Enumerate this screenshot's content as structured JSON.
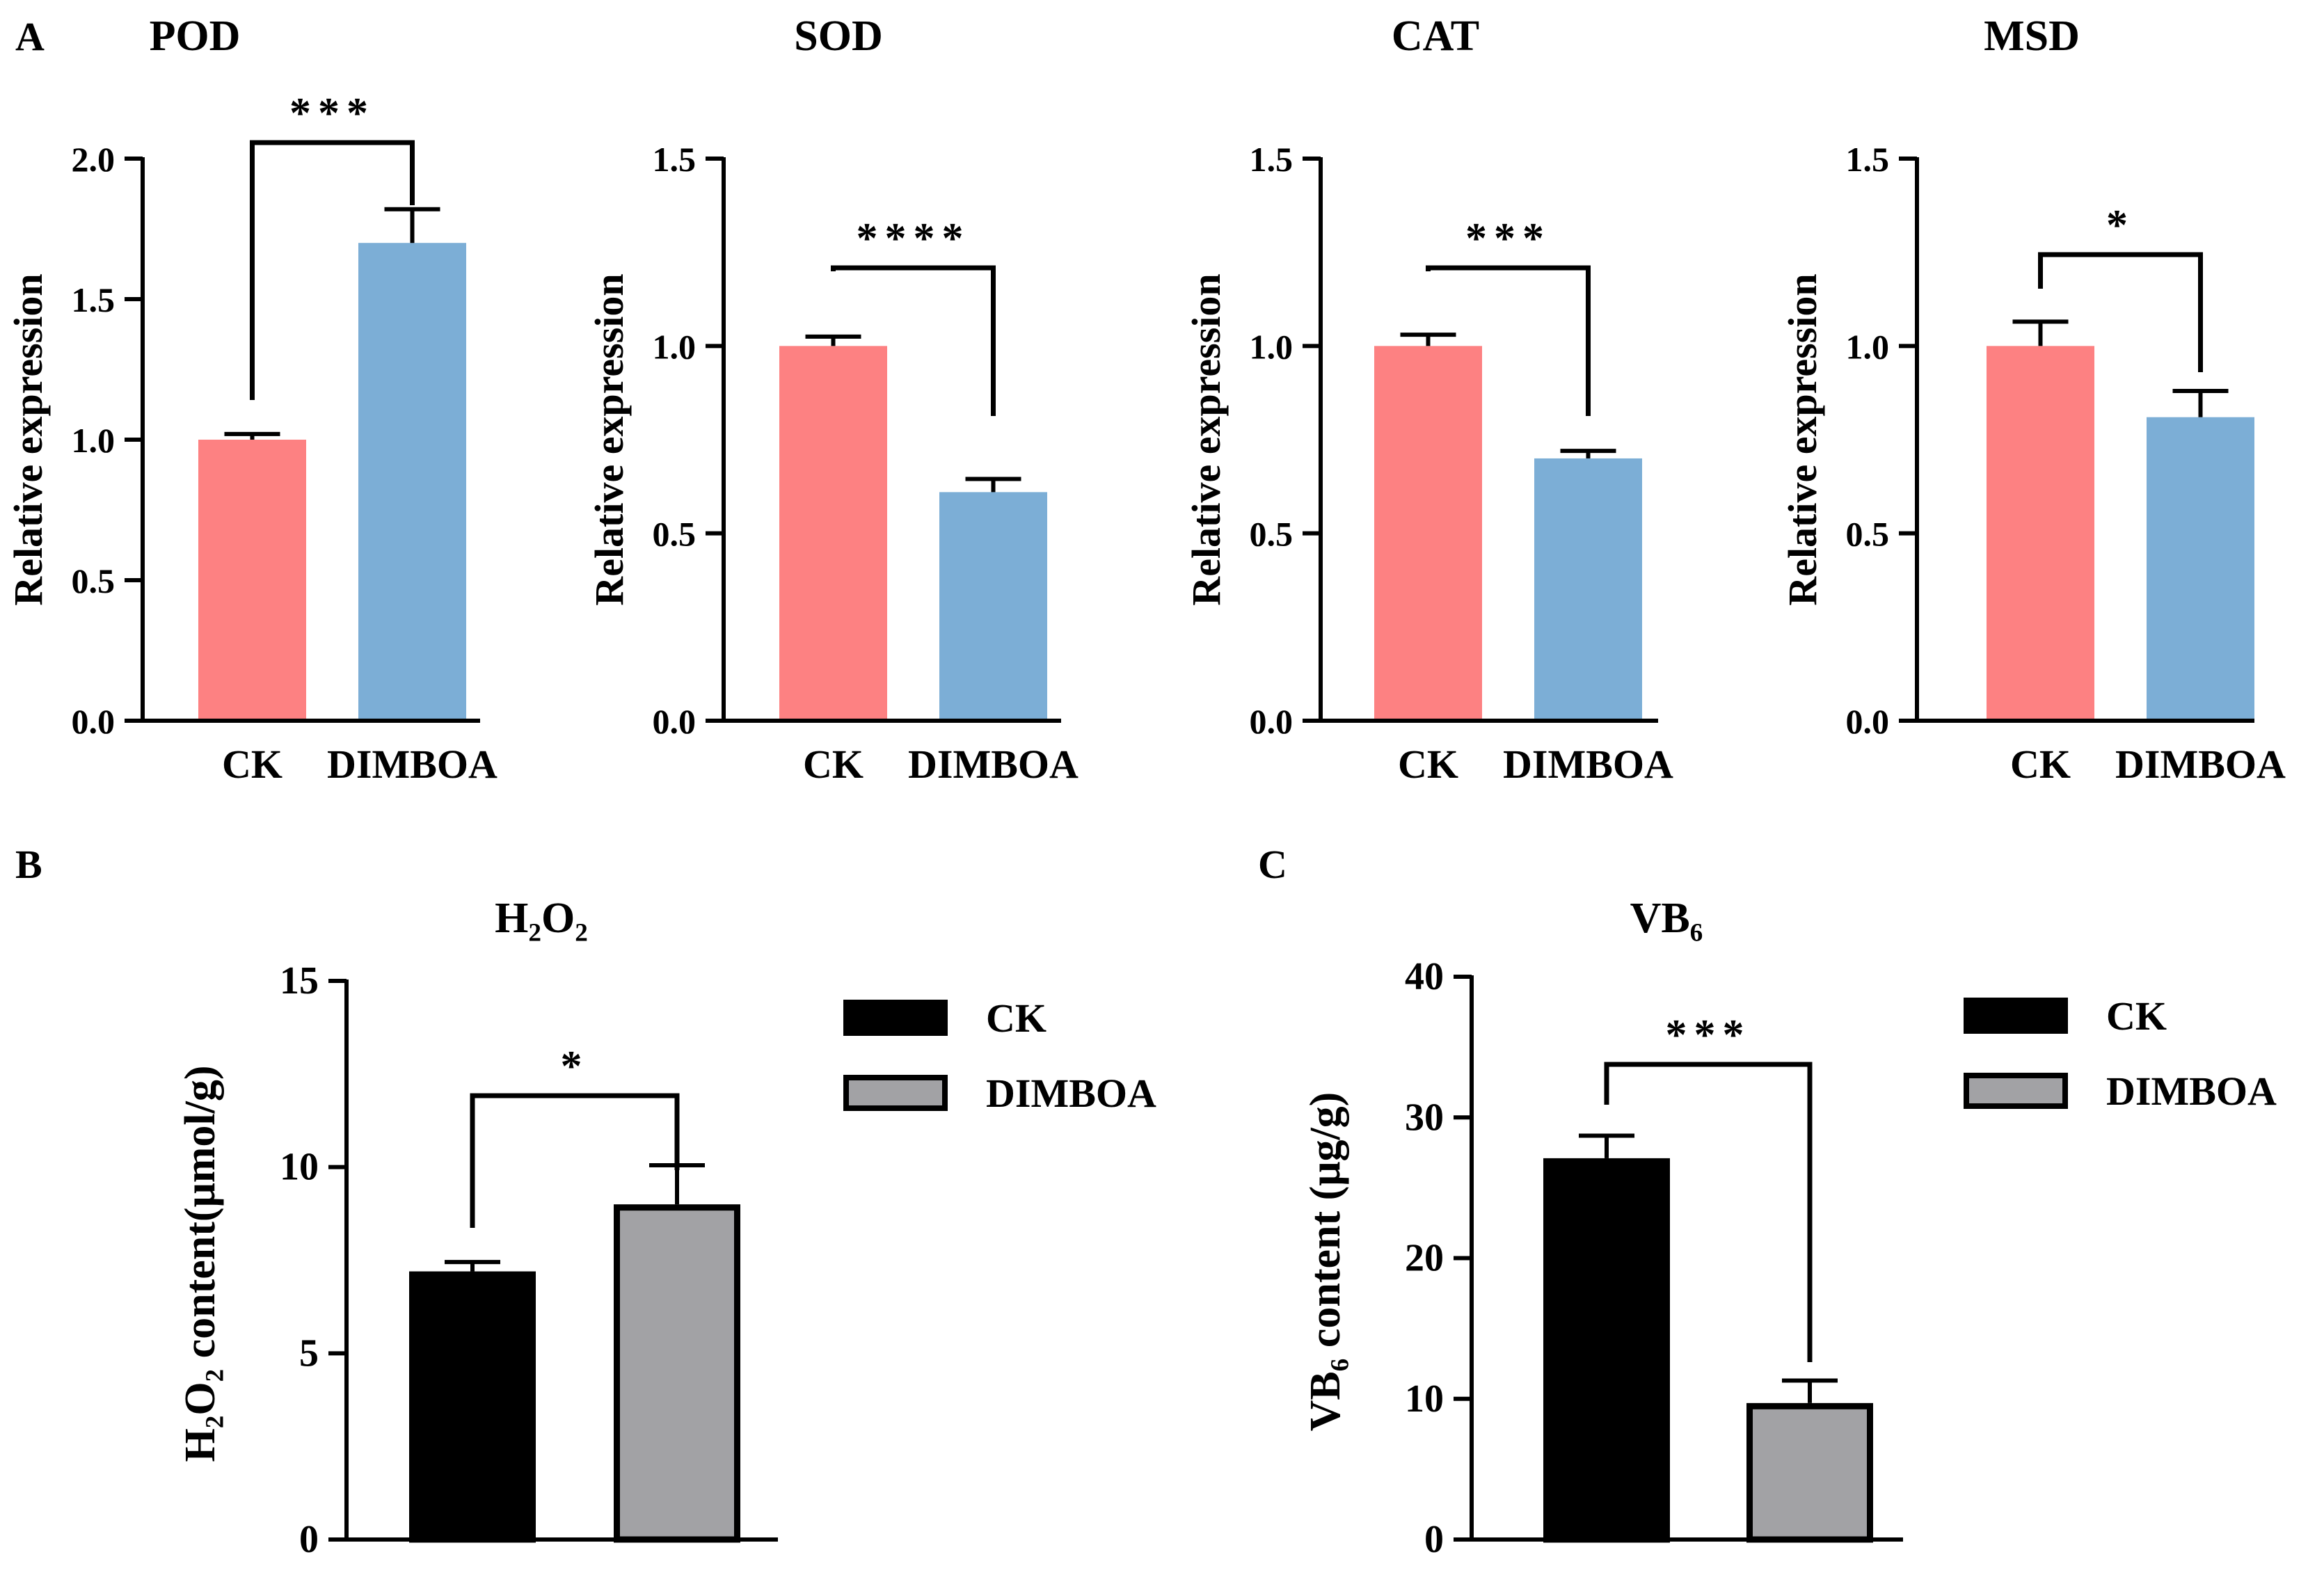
{
  "panel_letters": [
    "A",
    "B",
    "C"
  ],
  "chart_data": [
    {
      "type": "bar",
      "panel": "A",
      "title": "POD",
      "categories": [
        "CK",
        "DIMBOA"
      ],
      "values": [
        1.0,
        1.7
      ],
      "errors": [
        0.02,
        0.12
      ],
      "ylabel": "Relative expression",
      "ylim": [
        0,
        2.0
      ],
      "yticks": [
        "0.0",
        "0.5",
        "1.0",
        "1.5",
        "2.0"
      ],
      "ytick_values": [
        0,
        0.5,
        1.0,
        1.5,
        2.0
      ],
      "significance": "***",
      "colors": [
        "#fd8182",
        "#7caed6"
      ]
    },
    {
      "type": "bar",
      "panel": "A",
      "title": "SOD",
      "categories": [
        "CK",
        "DIMBOA"
      ],
      "values": [
        1.0,
        0.61
      ],
      "errors": [
        0.025,
        0.035
      ],
      "ylabel": "Relative expression",
      "ylim": [
        0,
        1.5
      ],
      "yticks": [
        "0.0",
        "0.5",
        "1.0",
        "1.5"
      ],
      "ytick_values": [
        0,
        0.5,
        1.0,
        1.5
      ],
      "significance": "****",
      "colors": [
        "#fd8182",
        "#7caed6"
      ]
    },
    {
      "type": "bar",
      "panel": "A",
      "title": "CAT",
      "categories": [
        "CK",
        "DIMBOA"
      ],
      "values": [
        1.0,
        0.7
      ],
      "errors": [
        0.03,
        0.02
      ],
      "ylabel": "Relative expression",
      "ylim": [
        0,
        1.5
      ],
      "yticks": [
        "0.0",
        "0.5",
        "1.0",
        "1.5"
      ],
      "ytick_values": [
        0,
        0.5,
        1.0,
        1.5
      ],
      "significance": "***",
      "colors": [
        "#fd8182",
        "#7caed6"
      ]
    },
    {
      "type": "bar",
      "panel": "A",
      "title": "MSD",
      "categories": [
        "CK",
        "DIMBOA"
      ],
      "values": [
        1.0,
        0.81
      ],
      "errors": [
        0.065,
        0.07
      ],
      "ylabel": "Relative expression",
      "ylim": [
        0,
        1.5
      ],
      "yticks": [
        "0.0",
        "0.5",
        "1.0",
        "1.5"
      ],
      "ytick_values": [
        0,
        0.5,
        1.0,
        1.5
      ],
      "significance": "*",
      "colors": [
        "#fd8182",
        "#7caed6"
      ]
    },
    {
      "type": "bar",
      "panel": "B",
      "title": "H₂O₂",
      "categories": [
        "CK",
        "DIMBOA"
      ],
      "values": [
        7.2,
        9.0
      ],
      "errors": [
        0.25,
        1.05
      ],
      "ylabel": "H₂O₂ content(μmol/g)",
      "ylim": [
        0,
        15
      ],
      "yticks": [
        "0",
        "5",
        "10",
        "15"
      ],
      "ytick_values": [
        0,
        5,
        10,
        15
      ],
      "significance": "*",
      "colors": [
        "#000000",
        "#a2a2a5"
      ],
      "legend": [
        "CK",
        "DIMBOA"
      ],
      "legend_position": "right"
    },
    {
      "type": "bar",
      "panel": "C",
      "title": "VB₆",
      "categories": [
        "CK",
        "DIMBOA"
      ],
      "values": [
        27.1,
        9.7
      ],
      "errors": [
        1.6,
        1.6
      ],
      "ylabel": "VB₆ content (μg/g)",
      "ylim": [
        0,
        40
      ],
      "yticks": [
        "0",
        "10",
        "20",
        "30",
        "40"
      ],
      "ytick_values": [
        0,
        10,
        20,
        30,
        40
      ],
      "significance": "***",
      "colors": [
        "#000000",
        "#a2a2a5"
      ],
      "legend": [
        "CK",
        "DIMBOA"
      ],
      "legend_position": "right"
    }
  ]
}
